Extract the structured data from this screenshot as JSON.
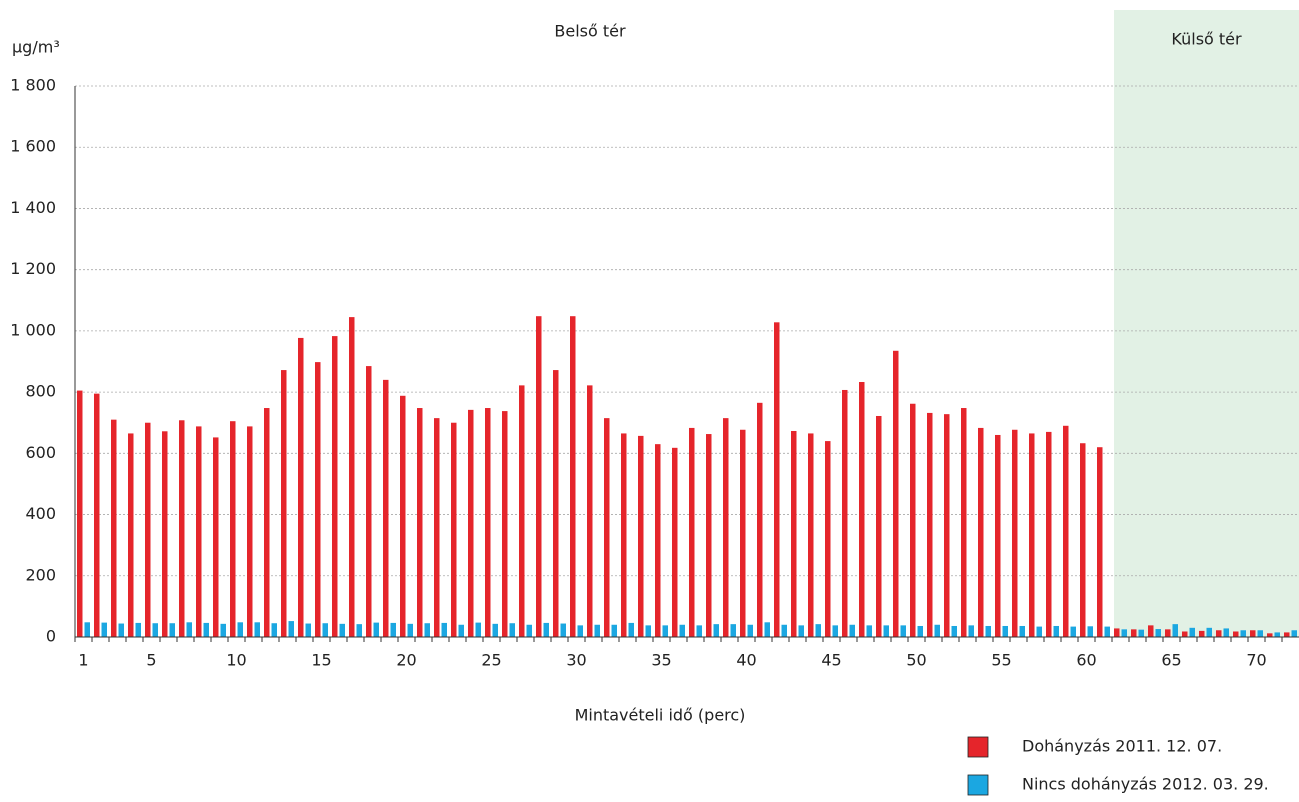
{
  "chart_data": {
    "type": "bar",
    "y_label": "µg/m³",
    "x_label": "Mintavételi idő (perc)",
    "annotations": [
      "Belső tér",
      "Külső tér"
    ],
    "categories": [
      "1",
      null,
      null,
      null,
      "5",
      null,
      null,
      null,
      null,
      "10",
      null,
      null,
      null,
      null,
      "15",
      null,
      null,
      null,
      null,
      "20",
      null,
      null,
      null,
      null,
      "25",
      null,
      null,
      null,
      null,
      "30",
      null,
      null,
      null,
      null,
      "35",
      null,
      null,
      null,
      null,
      "40",
      null,
      null,
      null,
      null,
      "45",
      null,
      null,
      null,
      null,
      "50",
      null,
      null,
      null,
      null,
      "55",
      null,
      null,
      null,
      null,
      "60",
      null,
      null,
      null,
      null,
      "65",
      null,
      null,
      null,
      null,
      "70",
      null,
      null
    ],
    "series": [
      {
        "name": "Dohányzás 2011. 12. 07.",
        "color": "#e5252b",
        "values": [
          805,
          795,
          710,
          665,
          700,
          672,
          708,
          688,
          652,
          705,
          688,
          748,
          872,
          977,
          898,
          983,
          1045,
          885,
          840,
          788,
          748,
          715,
          700,
          742,
          748,
          738,
          822,
          1048,
          872,
          1048,
          822,
          715,
          665,
          657,
          630,
          618,
          683,
          663,
          715,
          677,
          765,
          1028,
          673,
          665,
          640,
          807,
          833,
          722,
          935,
          762,
          732,
          728,
          748,
          683,
          660,
          677,
          665,
          670,
          690,
          633,
          620,
          28,
          25,
          38,
          25,
          18,
          20,
          22,
          18,
          22,
          12,
          15
        ]
      },
      {
        "name": "Nincs dohányzás 2012. 03. 29.",
        "color": "#1ba7e1",
        "values": [
          48,
          47,
          44,
          46,
          45,
          45,
          48,
          46,
          43,
          48,
          48,
          45,
          52,
          44,
          45,
          43,
          42,
          47,
          46,
          43,
          45,
          46,
          40,
          47,
          43,
          45,
          40,
          46,
          44,
          38,
          40,
          40,
          46,
          38,
          38,
          40,
          38,
          42,
          42,
          40,
          48,
          40,
          38,
          42,
          38,
          40,
          38,
          38,
          38,
          36,
          40,
          36,
          38,
          36,
          36,
          36,
          34,
          36,
          34,
          35,
          34,
          25,
          24,
          26,
          42,
          30,
          30,
          28,
          22,
          22,
          15,
          22
        ]
      }
    ],
    "ylim": [
      0,
      1800
    ],
    "yticks": [
      0,
      200,
      400,
      600,
      800,
      {
        "value": 1000,
        "label": "1 000"
      },
      {
        "value": 1200,
        "label": "1 200"
      },
      {
        "value": 1400,
        "label": "1 400"
      },
      {
        "value": 1600,
        "label": "1 600"
      },
      {
        "value": 1800,
        "label": "1 800"
      }
    ],
    "grid": true
  }
}
